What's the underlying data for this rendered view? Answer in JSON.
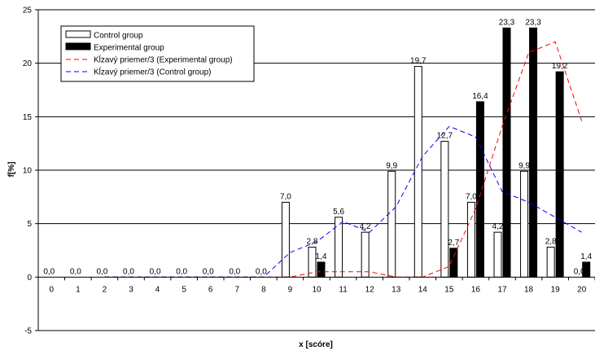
{
  "chart_data": {
    "type": "bar",
    "xlabel": "x [scóre]",
    "ylabel": "f[%]",
    "ylim": [
      -5,
      25
    ],
    "yticks": [
      -5,
      0,
      5,
      10,
      15,
      20,
      25
    ],
    "grid": true,
    "legend_position": "top-left",
    "categories": [
      "0",
      "1",
      "2",
      "3",
      "4",
      "5",
      "6",
      "7",
      "8",
      "9",
      "10",
      "11",
      "12",
      "13",
      "14",
      "15",
      "16",
      "17",
      "18",
      "19",
      "20"
    ],
    "series": [
      {
        "name": "Control group",
        "kind": "bar",
        "fill": "#ffffff",
        "values": [
          0,
          0,
          0,
          0,
          0,
          0,
          0,
          0,
          0,
          7,
          2.8,
          5.6,
          4.2,
          9.9,
          19.7,
          12.7,
          7,
          4.2,
          9.9,
          2.8,
          0
        ],
        "labels": [
          "0,0",
          "0,0",
          "0,0",
          "0,0",
          "0,0",
          "0,0",
          "0,0",
          "0,0",
          "0,0",
          "7,0",
          "2,8",
          "5,6",
          "4,2",
          "9,9",
          "19,7",
          "12,7",
          "7,0",
          "4,2",
          "9,9",
          "2,8",
          "0,0"
        ]
      },
      {
        "name": "Experimental group",
        "kind": "bar",
        "fill": "#000000",
        "values": [
          0,
          0,
          0,
          0,
          0,
          0,
          0,
          0,
          0,
          0,
          1.4,
          0,
          0,
          0,
          0,
          2.7,
          16.4,
          23.3,
          23.3,
          19.2,
          1.4
        ],
        "labels": [
          "",
          "",
          "",
          "",
          "",
          "",
          "",
          "",
          "",
          "",
          "1,4",
          "",
          "",
          "",
          "",
          "2,7",
          "16,4",
          "23,3",
          "23,3",
          "19,2",
          "1,4"
        ]
      },
      {
        "name": "Kĺzavý priemer/3 (Experimental group)",
        "kind": "line",
        "color": "#ff0000",
        "x": [
          2,
          3,
          4,
          5,
          6,
          7,
          8,
          9,
          10,
          11,
          12,
          13,
          14,
          15,
          16,
          17,
          18,
          19,
          20
        ],
        "values": [
          0,
          0,
          0,
          0,
          0,
          0,
          0,
          0,
          0.5,
          0.5,
          0.5,
          0,
          0,
          1,
          6.4,
          14.1,
          21,
          22,
          14.6
        ]
      },
      {
        "name": "Kĺzavý priemer/3 (Control group)",
        "kind": "line",
        "color": "#0000ff",
        "x": [
          2,
          3,
          4,
          5,
          6,
          7,
          8,
          9,
          10,
          11,
          12,
          13,
          14,
          15,
          16,
          17,
          18,
          19,
          20
        ],
        "values": [
          0,
          0,
          0,
          0,
          0,
          0,
          0,
          2.3,
          3.3,
          5.2,
          4.2,
          6.6,
          11.3,
          14.1,
          13.1,
          8,
          7,
          5.6,
          4.2
        ]
      }
    ]
  }
}
